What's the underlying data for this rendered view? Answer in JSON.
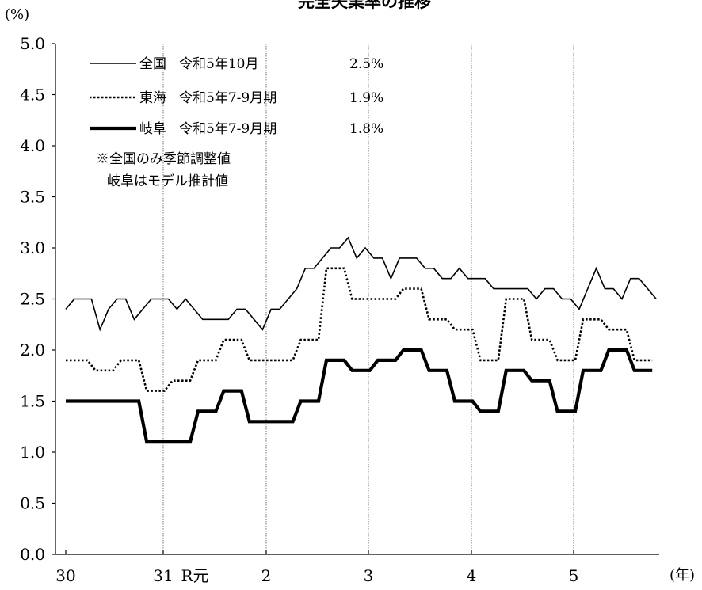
{
  "chart_data": {
    "type": "line",
    "title": "完全失業率の推移",
    "y_unit": "(%)",
    "x_unit": "(年)",
    "ylim": [
      0,
      5
    ],
    "yticks": [
      "0.0",
      "0.5",
      "1.0",
      "1.5",
      "2.0",
      "2.5",
      "3.0",
      "3.5",
      "4.0",
      "4.5",
      "5.0"
    ],
    "x_ticks": [
      "30",
      "31",
      "R元",
      "2",
      "3",
      "4",
      "5"
    ],
    "grid": "vertical lines at 31, 2, 3, 4, 5",
    "legend_position": "top-left",
    "series": [
      {
        "name": "全国",
        "legend_period": "令和5年10月",
        "legend_value": "2.5%",
        "style": "solid-thin",
        "color": "#000000",
        "values": [
          2.4,
          2.5,
          2.5,
          2.5,
          2.2,
          2.4,
          2.5,
          2.5,
          2.3,
          2.4,
          2.5,
          2.5,
          2.5,
          2.4,
          2.5,
          2.4,
          2.3,
          2.3,
          2.3,
          2.3,
          2.4,
          2.4,
          2.3,
          2.2,
          2.4,
          2.4,
          2.5,
          2.6,
          2.8,
          2.8,
          2.9,
          3.0,
          3.0,
          3.1,
          2.9,
          3.0,
          2.9,
          2.9,
          2.7,
          2.9,
          2.9,
          2.9,
          2.8,
          2.8,
          2.7,
          2.7,
          2.8,
          2.7,
          2.7,
          2.7,
          2.6,
          2.6,
          2.6,
          2.6,
          2.6,
          2.5,
          2.6,
          2.6,
          2.5,
          2.5,
          2.4,
          2.6,
          2.8,
          2.6,
          2.6,
          2.5,
          2.7,
          2.7,
          2.6,
          2.5
        ]
      },
      {
        "name": "東海",
        "legend_period": "令和5年7-9月期",
        "legend_value": "1.9%",
        "style": "dotted",
        "color": "#000000",
        "values": [
          1.9,
          1.8,
          1.9,
          1.6,
          1.7,
          1.9,
          2.1,
          1.9,
          1.9,
          2.1,
          2.8,
          2.5,
          2.5,
          2.6,
          2.3,
          2.2,
          1.9,
          2.5,
          2.1,
          1.9,
          2.3,
          2.2,
          1.9
        ]
      },
      {
        "name": "岐阜",
        "legend_period": "令和5年7-9月期",
        "legend_value": "1.8%",
        "style": "solid-thick",
        "color": "#000000",
        "values": [
          1.5,
          1.5,
          1.5,
          1.1,
          1.1,
          1.4,
          1.6,
          1.3,
          1.3,
          1.5,
          1.9,
          1.8,
          1.9,
          2.0,
          1.8,
          1.5,
          1.4,
          1.8,
          1.7,
          1.4,
          1.8,
          2.0,
          1.8
        ]
      }
    ],
    "note": [
      "※全国のみ季節調整値",
      "岐阜はモデル推計値"
    ]
  }
}
